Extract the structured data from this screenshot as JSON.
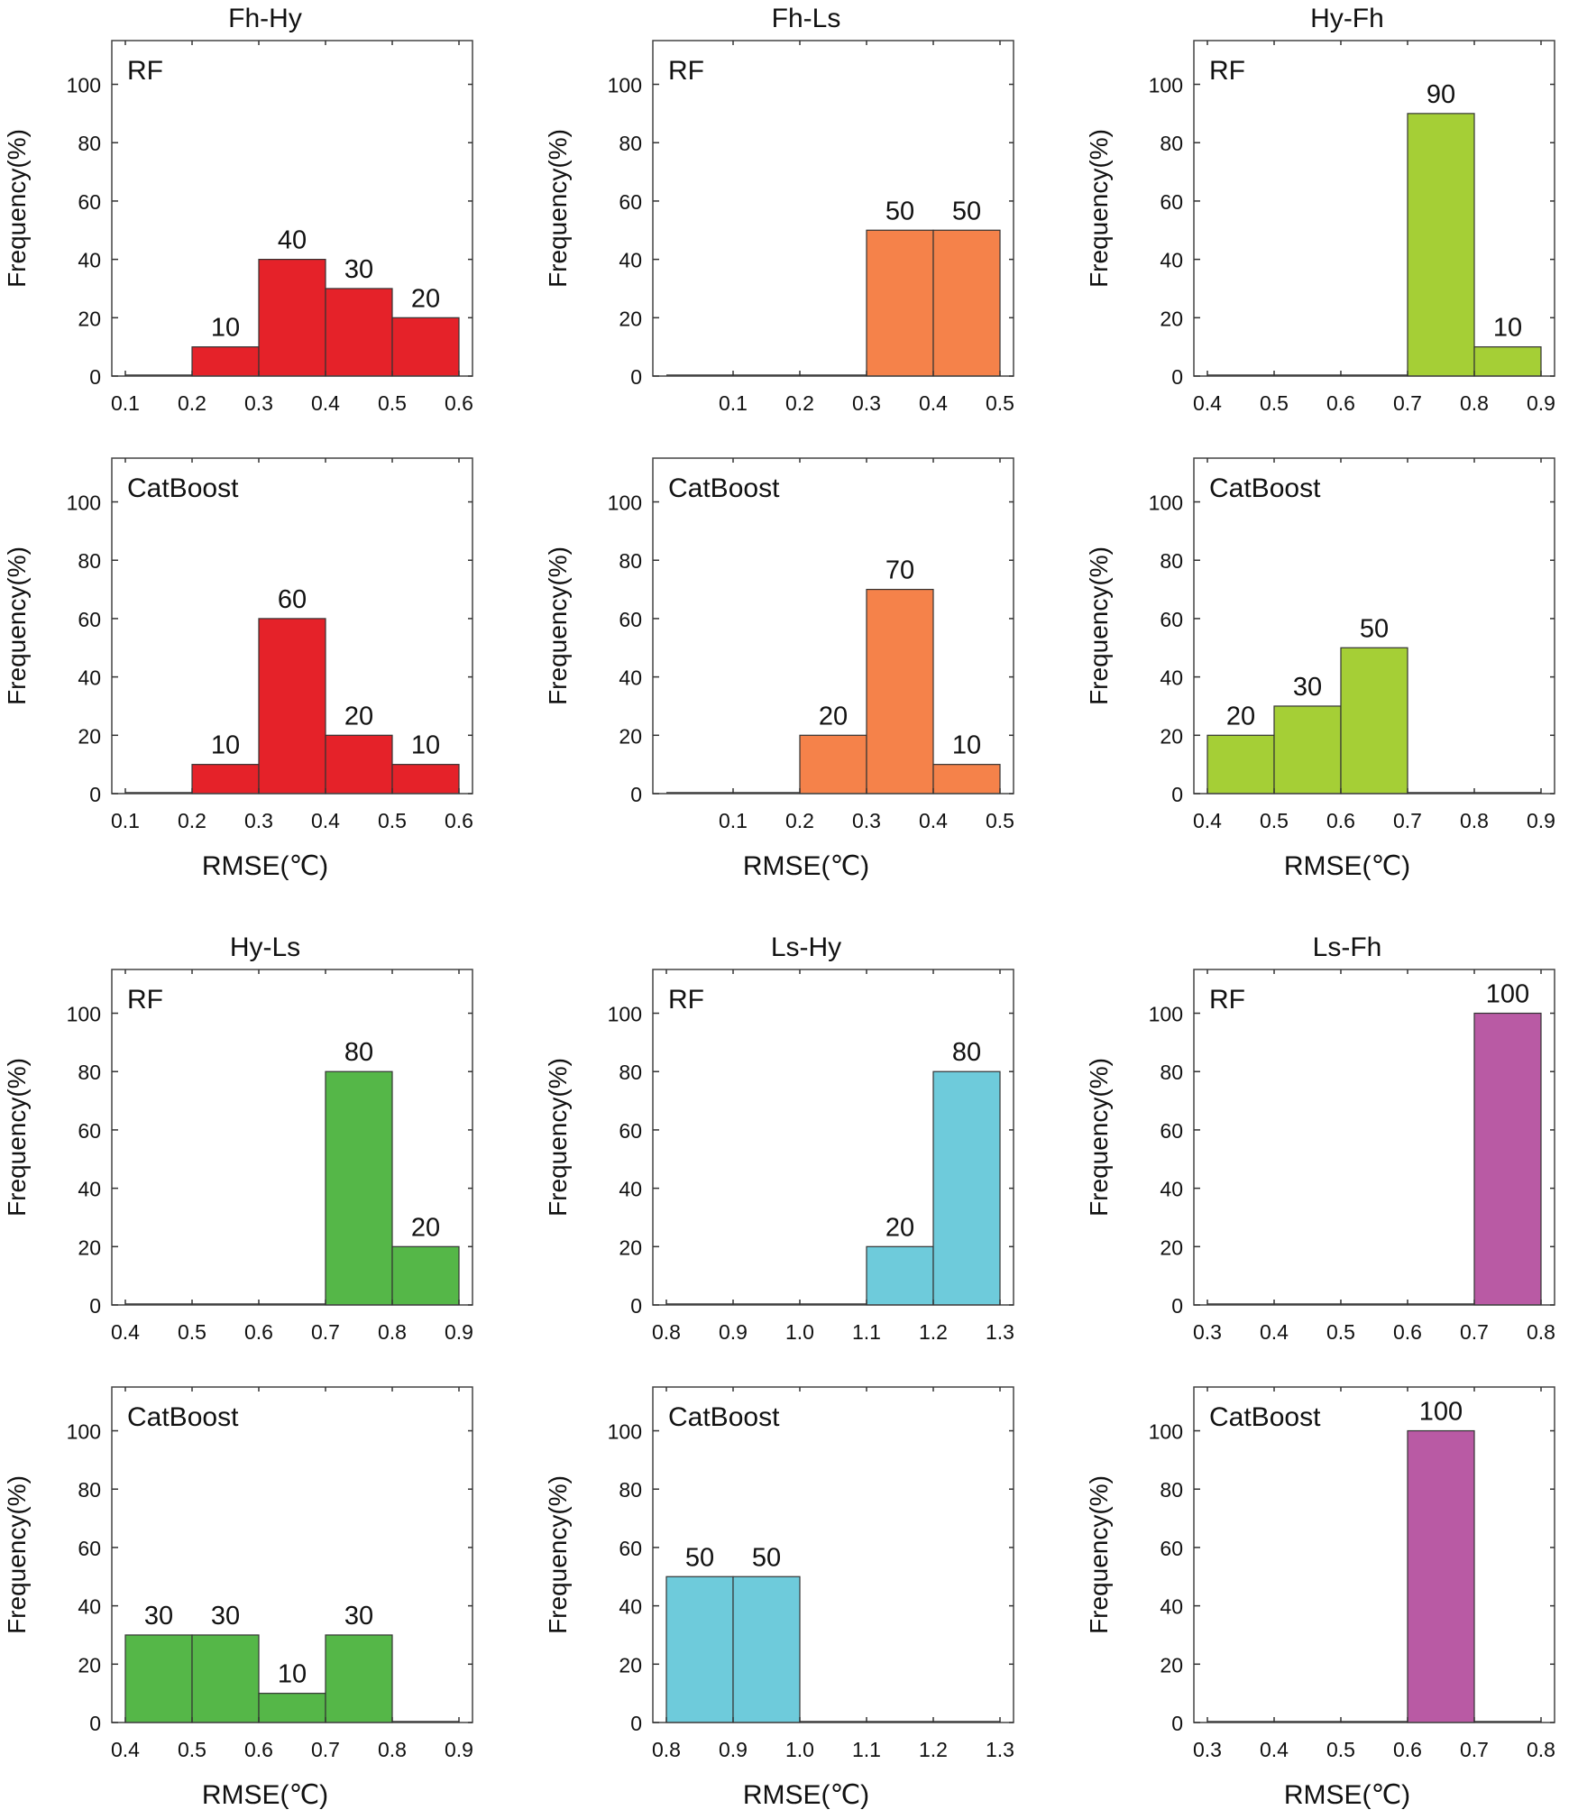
{
  "figure": {
    "ylabel": "Frequency(%)",
    "xlabel": "RMSE(℃)",
    "yticks": [
      "0",
      "20",
      "40",
      "60",
      "80",
      "100"
    ],
    "ymax": 115
  },
  "colors": {
    "Fh-Hy": "#e52229",
    "Fh-Ls": "#f5824a",
    "Hy-Fh": "#a5cf36",
    "Hy-Ls": "#55b748",
    "Ls-Hy": "#6ecbdb",
    "Ls-Fh": "#b95aa4"
  },
  "chart_data": [
    {
      "type": "bar",
      "group": "Fh-Hy",
      "title": "Fh-Hy",
      "model": "RF",
      "xticks": [
        "0.1",
        "0.2",
        "0.3",
        "0.4",
        "0.5",
        "0.6"
      ],
      "xlim": [
        0.1,
        0.6
      ],
      "bins": [
        {
          "x0": 0.1,
          "x1": 0.2,
          "value": 0
        },
        {
          "x0": 0.2,
          "x1": 0.3,
          "value": 10
        },
        {
          "x0": 0.3,
          "x1": 0.4,
          "value": 40
        },
        {
          "x0": 0.4,
          "x1": 0.5,
          "value": 30
        },
        {
          "x0": 0.5,
          "x1": 0.6,
          "value": 20
        }
      ],
      "labels": [
        "",
        "10",
        "40",
        "30",
        "20"
      ],
      "ylim": [
        0,
        115
      ]
    },
    {
      "type": "bar",
      "group": "Fh-Ls",
      "title": "Fh-Ls",
      "model": "RF",
      "xticks": [
        "0.1",
        "0.2",
        "0.3",
        "0.4",
        "0.5"
      ],
      "xlim": [
        0.0,
        0.5
      ],
      "bins": [
        {
          "x0": 0.0,
          "x1": 0.1,
          "value": 0
        },
        {
          "x0": 0.1,
          "x1": 0.2,
          "value": 0
        },
        {
          "x0": 0.2,
          "x1": 0.3,
          "value": 0
        },
        {
          "x0": 0.3,
          "x1": 0.4,
          "value": 50
        },
        {
          "x0": 0.4,
          "x1": 0.5,
          "value": 50
        }
      ],
      "labels": [
        "",
        "",
        "",
        "50",
        "50"
      ],
      "ylim": [
        0,
        115
      ]
    },
    {
      "type": "bar",
      "group": "Hy-Fh",
      "title": "Hy-Fh",
      "model": "RF",
      "xticks": [
        "0.4",
        "0.5",
        "0.6",
        "0.7",
        "0.8",
        "0.9"
      ],
      "xlim": [
        0.4,
        0.9
      ],
      "bins": [
        {
          "x0": 0.4,
          "x1": 0.5,
          "value": 0
        },
        {
          "x0": 0.5,
          "x1": 0.6,
          "value": 0
        },
        {
          "x0": 0.6,
          "x1": 0.7,
          "value": 0
        },
        {
          "x0": 0.7,
          "x1": 0.8,
          "value": 90
        },
        {
          "x0": 0.8,
          "x1": 0.9,
          "value": 10
        }
      ],
      "labels": [
        "",
        "",
        "",
        "90",
        "10"
      ],
      "ylim": [
        0,
        115
      ]
    },
    {
      "type": "bar",
      "group": "Fh-Hy",
      "title": "",
      "model": "CatBoost",
      "xticks": [
        "0.1",
        "0.2",
        "0.3",
        "0.4",
        "0.5",
        "0.6"
      ],
      "xlim": [
        0.1,
        0.6
      ],
      "bins": [
        {
          "x0": 0.1,
          "x1": 0.2,
          "value": 0
        },
        {
          "x0": 0.2,
          "x1": 0.3,
          "value": 10
        },
        {
          "x0": 0.3,
          "x1": 0.4,
          "value": 60
        },
        {
          "x0": 0.4,
          "x1": 0.5,
          "value": 20
        },
        {
          "x0": 0.5,
          "x1": 0.6,
          "value": 10
        }
      ],
      "labels": [
        "",
        "10",
        "60",
        "20",
        "10"
      ],
      "ylim": [
        0,
        115
      ],
      "xlabel": "RMSE(℃)"
    },
    {
      "type": "bar",
      "group": "Fh-Ls",
      "title": "",
      "model": "CatBoost",
      "xticks": [
        "0.1",
        "0.2",
        "0.3",
        "0.4",
        "0.5"
      ],
      "xlim": [
        0.0,
        0.5
      ],
      "bins": [
        {
          "x0": 0.0,
          "x1": 0.1,
          "value": 0
        },
        {
          "x0": 0.1,
          "x1": 0.2,
          "value": 0
        },
        {
          "x0": 0.2,
          "x1": 0.3,
          "value": 20
        },
        {
          "x0": 0.3,
          "x1": 0.4,
          "value": 70
        },
        {
          "x0": 0.4,
          "x1": 0.5,
          "value": 10
        }
      ],
      "labels": [
        "",
        "",
        "20",
        "70",
        "10"
      ],
      "ylim": [
        0,
        115
      ],
      "xlabel": "RMSE(℃)"
    },
    {
      "type": "bar",
      "group": "Hy-Fh",
      "title": "",
      "model": "CatBoost",
      "xticks": [
        "0.4",
        "0.5",
        "0.6",
        "0.7",
        "0.8",
        "0.9"
      ],
      "xlim": [
        0.4,
        0.9
      ],
      "bins": [
        {
          "x0": 0.4,
          "x1": 0.5,
          "value": 20
        },
        {
          "x0": 0.5,
          "x1": 0.6,
          "value": 30
        },
        {
          "x0": 0.6,
          "x1": 0.7,
          "value": 50
        },
        {
          "x0": 0.7,
          "x1": 0.8,
          "value": 0
        },
        {
          "x0": 0.8,
          "x1": 0.9,
          "value": 0
        }
      ],
      "labels": [
        "20",
        "30",
        "50",
        "",
        ""
      ],
      "ylim": [
        0,
        115
      ],
      "xlabel": "RMSE(℃)"
    },
    {
      "type": "bar",
      "group": "Hy-Ls",
      "title": "Hy-Ls",
      "model": "RF",
      "xticks": [
        "0.4",
        "0.5",
        "0.6",
        "0.7",
        "0.8",
        "0.9"
      ],
      "xlim": [
        0.4,
        0.9
      ],
      "bins": [
        {
          "x0": 0.4,
          "x1": 0.5,
          "value": 0
        },
        {
          "x0": 0.5,
          "x1": 0.6,
          "value": 0
        },
        {
          "x0": 0.6,
          "x1": 0.7,
          "value": 0
        },
        {
          "x0": 0.7,
          "x1": 0.8,
          "value": 80
        },
        {
          "x0": 0.8,
          "x1": 0.9,
          "value": 20
        }
      ],
      "labels": [
        "",
        "",
        "",
        "80",
        "20"
      ],
      "ylim": [
        0,
        115
      ]
    },
    {
      "type": "bar",
      "group": "Ls-Hy",
      "title": "Ls-Hy",
      "model": "RF",
      "xticks": [
        "0.8",
        "0.9",
        "1.0",
        "1.1",
        "1.2",
        "1.3"
      ],
      "xlim": [
        0.8,
        1.3
      ],
      "bins": [
        {
          "x0": 0.8,
          "x1": 0.9,
          "value": 0
        },
        {
          "x0": 0.9,
          "x1": 1.0,
          "value": 0
        },
        {
          "x0": 1.0,
          "x1": 1.1,
          "value": 0
        },
        {
          "x0": 1.1,
          "x1": 1.2,
          "value": 20
        },
        {
          "x0": 1.2,
          "x1": 1.3,
          "value": 80
        }
      ],
      "labels": [
        "",
        "",
        "",
        "20",
        "80"
      ],
      "ylim": [
        0,
        115
      ]
    },
    {
      "type": "bar",
      "group": "Ls-Fh",
      "title": "Ls-Fh",
      "model": "RF",
      "xticks": [
        "0.3",
        "0.4",
        "0.5",
        "0.6",
        "0.7",
        "0.8"
      ],
      "xlim": [
        0.3,
        0.8
      ],
      "bins": [
        {
          "x0": 0.3,
          "x1": 0.4,
          "value": 0
        },
        {
          "x0": 0.4,
          "x1": 0.5,
          "value": 0
        },
        {
          "x0": 0.5,
          "x1": 0.6,
          "value": 0
        },
        {
          "x0": 0.6,
          "x1": 0.7,
          "value": 0
        },
        {
          "x0": 0.7,
          "x1": 0.8,
          "value": 100
        }
      ],
      "labels": [
        "",
        "",
        "",
        "",
        "100"
      ],
      "ylim": [
        0,
        115
      ]
    },
    {
      "type": "bar",
      "group": "Hy-Ls",
      "title": "",
      "model": "CatBoost",
      "xticks": [
        "0.4",
        "0.5",
        "0.6",
        "0.7",
        "0.8",
        "0.9"
      ],
      "xlim": [
        0.4,
        0.9
      ],
      "bins": [
        {
          "x0": 0.4,
          "x1": 0.5,
          "value": 30
        },
        {
          "x0": 0.5,
          "x1": 0.6,
          "value": 30
        },
        {
          "x0": 0.6,
          "x1": 0.7,
          "value": 10
        },
        {
          "x0": 0.7,
          "x1": 0.8,
          "value": 30
        },
        {
          "x0": 0.8,
          "x1": 0.9,
          "value": 0
        }
      ],
      "labels": [
        "30",
        "30",
        "10",
        "30",
        ""
      ],
      "ylim": [
        0,
        115
      ],
      "xlabel": "RMSE(℃)"
    },
    {
      "type": "bar",
      "group": "Ls-Hy",
      "title": "",
      "model": "CatBoost",
      "xticks": [
        "0.8",
        "0.9",
        "1.0",
        "1.1",
        "1.2",
        "1.3"
      ],
      "xlim": [
        0.8,
        1.3
      ],
      "bins": [
        {
          "x0": 0.8,
          "x1": 0.9,
          "value": 50
        },
        {
          "x0": 0.9,
          "x1": 1.0,
          "value": 50
        },
        {
          "x0": 1.0,
          "x1": 1.1,
          "value": 0
        },
        {
          "x0": 1.1,
          "x1": 1.2,
          "value": 0
        },
        {
          "x0": 1.2,
          "x1": 1.3,
          "value": 0
        }
      ],
      "labels": [
        "50",
        "50",
        "",
        "",
        ""
      ],
      "ylim": [
        0,
        115
      ],
      "xlabel": "RMSE(℃)"
    },
    {
      "type": "bar",
      "group": "Ls-Fh",
      "title": "",
      "model": "CatBoost",
      "xticks": [
        "0.3",
        "0.4",
        "0.5",
        "0.6",
        "0.7",
        "0.8"
      ],
      "xlim": [
        0.3,
        0.8
      ],
      "bins": [
        {
          "x0": 0.3,
          "x1": 0.4,
          "value": 0
        },
        {
          "x0": 0.4,
          "x1": 0.5,
          "value": 0
        },
        {
          "x0": 0.5,
          "x1": 0.6,
          "value": 0
        },
        {
          "x0": 0.6,
          "x1": 0.7,
          "value": 100
        },
        {
          "x0": 0.7,
          "x1": 0.8,
          "value": 0
        }
      ],
      "labels": [
        "",
        "",
        "",
        "100",
        ""
      ],
      "ylim": [
        0,
        115
      ],
      "xlabel": "RMSE(℃)"
    }
  ]
}
